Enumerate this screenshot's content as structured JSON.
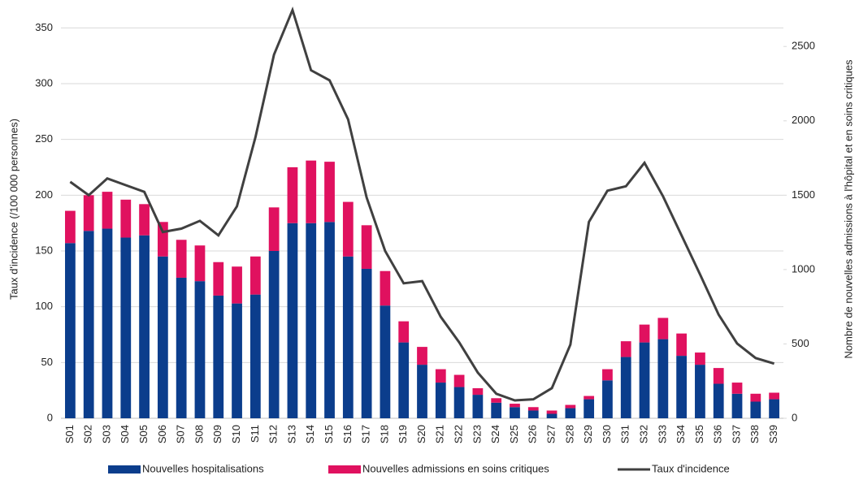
{
  "chart_data": {
    "type": "bar",
    "stacked": true,
    "categories": [
      "S01",
      "S02",
      "S03",
      "S04",
      "S05",
      "S06",
      "S07",
      "S08",
      "S09",
      "S10",
      "S11",
      "S12",
      "S13",
      "S14",
      "S15",
      "S16",
      "S17",
      "S18",
      "S19",
      "S20",
      "S21",
      "S22",
      "S23",
      "S24",
      "S25",
      "S26",
      "S27",
      "S28",
      "S29",
      "S30",
      "S31",
      "S32",
      "S33",
      "S34",
      "S35",
      "S36",
      "S37",
      "S38",
      "S39"
    ],
    "y_label": "Taux d'incidence (/100 000 personnes)",
    "y2_label": "Nombre de nouvelles admissions à l'hôpital et en soins critiques",
    "ylim": [
      0,
      375
    ],
    "yticks": [
      0,
      50,
      100,
      150,
      200,
      250,
      300,
      350
    ],
    "y2lim": [
      0,
      2812.5
    ],
    "y2ticks": [
      0,
      500,
      1000,
      1500,
      2000,
      2500
    ],
    "grid": true,
    "legend": "bottom",
    "series": [
      {
        "name": "Nouvelles hospitalisations",
        "type": "bar",
        "axis": "y2",
        "color": "#0b3d8c",
        "values": [
          1178,
          1260,
          1275,
          1215,
          1230,
          1088,
          945,
          922,
          825,
          772,
          832,
          1125,
          1312,
          1312,
          1320,
          1088,
          1005,
          758,
          510,
          360,
          240,
          210,
          158,
          105,
          75,
          52,
          30,
          68,
          128,
          255,
          412,
          510,
          532,
          420,
          360,
          232,
          165,
          112,
          128
        ]
      },
      {
        "name": "Nouvelles admissions en soins critiques",
        "type": "bar",
        "axis": "y2",
        "color": "#e0115f",
        "values": [
          217,
          240,
          248,
          255,
          210,
          232,
          255,
          240,
          225,
          248,
          256,
          293,
          376,
          421,
          405,
          367,
          293,
          232,
          142,
          120,
          90,
          82,
          44,
          30,
          23,
          23,
          22,
          22,
          22,
          75,
          106,
          120,
          143,
          150,
          82,
          106,
          75,
          53,
          44
        ]
      },
      {
        "name": "Taux d'incidence",
        "type": "line",
        "color": "#404040",
        "values": [
          212,
          200,
          215,
          209,
          203,
          167,
          170,
          177,
          164,
          190,
          252,
          326,
          366,
          312,
          303,
          268,
          198,
          150,
          121,
          123,
          91,
          68,
          41,
          22,
          16,
          17,
          27,
          66,
          176,
          204,
          208,
          229,
          199,
          164,
          129,
          93,
          67,
          54,
          49
        ]
      }
    ]
  }
}
